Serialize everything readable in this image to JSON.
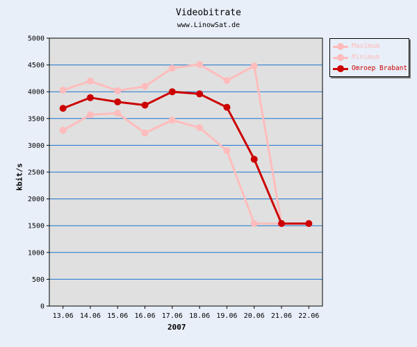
{
  "chart_data": {
    "type": "line",
    "title": "Videobitrate",
    "subtitle": "www.LinowSat.de",
    "ylabel": "kbit/s",
    "xlabel": "2007",
    "categories": [
      "13.06",
      "14.06",
      "15.06",
      "16.06",
      "17.06",
      "18.06",
      "19.06",
      "20.06",
      "21.06",
      "22.06"
    ],
    "ylim": [
      0,
      5000
    ],
    "yticks": [
      0,
      500,
      1000,
      1500,
      2000,
      2500,
      3000,
      3500,
      4000,
      4500,
      5000
    ],
    "grid": true,
    "legend_position": "top-right",
    "series": [
      {
        "name": "Maximum",
        "color": "#ffbcbc",
        "values": [
          4030,
          4200,
          4020,
          4100,
          4440,
          4510,
          4210,
          4480,
          1540,
          1540
        ]
      },
      {
        "name": "Minimum",
        "color": "#ffbcbc",
        "values": [
          3280,
          3570,
          3600,
          3230,
          3470,
          3330,
          2900,
          1540,
          1540,
          1540
        ]
      },
      {
        "name": "Omroep Brabant",
        "color": "#cc0000",
        "values": [
          3690,
          3890,
          3810,
          3750,
          4000,
          3960,
          3710,
          2740,
          1540,
          1540
        ]
      }
    ]
  }
}
